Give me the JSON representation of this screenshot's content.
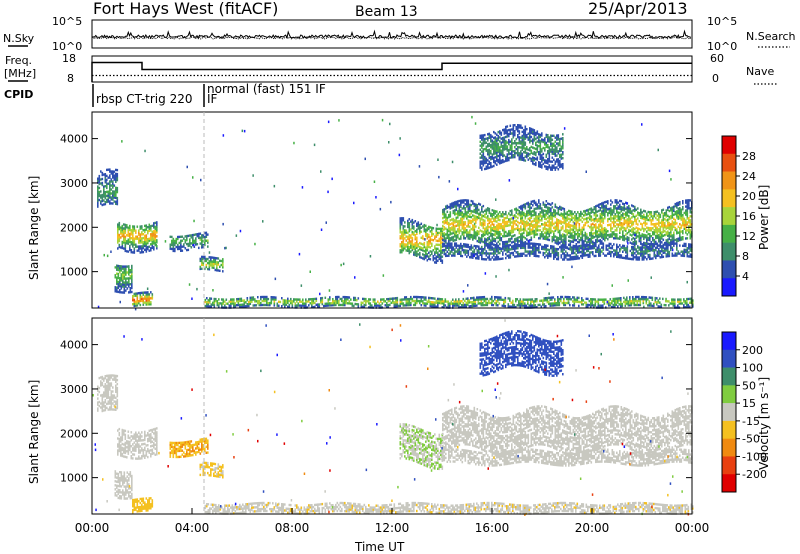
{
  "header": {
    "radar_title": "Fort Hays West (fitACF)",
    "beam": "Beam 13",
    "date": "25/Apr/2013"
  },
  "noise_panel": {
    "left_label": "N.Sky",
    "right_label": "N.Search",
    "left_ticks": [
      "10^5",
      "10^0"
    ],
    "right_ticks": [
      "10^5",
      "10^0"
    ]
  },
  "freq_panel": {
    "left_label_line1": "Freq.",
    "left_label_line2": "[MHz]",
    "right_label": "Nave",
    "left_ticks": [
      "18",
      "8"
    ],
    "right_ticks": [
      "60",
      "0"
    ],
    "frequency_steps": [
      {
        "start": "00:00",
        "end": "02:00",
        "value_mhz": 15.5
      },
      {
        "start": "02:00",
        "end": "14:00",
        "value_mhz": 12.8
      },
      {
        "start": "14:00",
        "end": "24:00",
        "value_mhz": 15.2
      }
    ],
    "nave_level": 15
  },
  "cpid_panel": {
    "label": "CPID",
    "segments": [
      {
        "text": "rbsp CT-trig 220",
        "start": "00:00"
      },
      {
        "text": "IF",
        "start": "04:30"
      },
      {
        "text": "normal (fast) 151 IF",
        "start": "04:30"
      }
    ]
  },
  "power_panel": {
    "ylabel": "Slant Range [km]",
    "yticks": [
      "4000",
      "3000",
      "2000",
      "1000"
    ],
    "colorbar_label": "Power [dB]",
    "colorbar_ticks": [
      "28",
      "24",
      "20",
      "16",
      "12",
      "8",
      "4"
    ],
    "colors": [
      "#1a1aff",
      "#2e4fb0",
      "#3e8e6a",
      "#46b046",
      "#a8d43a",
      "#f4c020",
      "#f09418",
      "#e85010",
      "#e00000"
    ]
  },
  "velocity_panel": {
    "ylabel": "Slant Range [km]",
    "yticks": [
      "4000",
      "3000",
      "2000",
      "1000"
    ],
    "colorbar_label": "Velocity [m s⁻¹]",
    "colorbar_ticks": [
      "200",
      "100",
      "50",
      "15",
      "-15",
      "-50",
      "-100",
      "-200"
    ],
    "colors": [
      "#1a1aff",
      "#3050c0",
      "#3e8e6a",
      "#80cc40",
      "#c8c8c0",
      "#f4c020",
      "#f08a10",
      "#e84010",
      "#e00000"
    ]
  },
  "xaxis": {
    "label": "Time UT",
    "ticks": [
      "00:00",
      "04:00",
      "08:00",
      "12:00",
      "16:00",
      "20:00",
      "00:00"
    ]
  },
  "chart_data": {
    "type": "heatmap",
    "x_range_hours": [
      0,
      24
    ],
    "y_range_km": [
      180,
      4600
    ],
    "power_db_range": [
      0,
      30
    ],
    "velocity_range": [
      -250,
      250
    ],
    "echo_regions": [
      {
        "t0": 0.2,
        "t1": 1.0,
        "r0": 2400,
        "r1": 3200,
        "power": 8,
        "velocity": 0
      },
      {
        "t0": 1.0,
        "t1": 2.6,
        "r0": 1500,
        "r1": 2100,
        "power": 18,
        "velocity": 0
      },
      {
        "t0": 0.9,
        "t1": 1.6,
        "r0": 600,
        "r1": 1200,
        "power": 12,
        "velocity": 0
      },
      {
        "t0": 1.6,
        "t1": 2.4,
        "r0": 200,
        "r1": 500,
        "power": 22,
        "velocity": -50
      },
      {
        "t0": 3.1,
        "t1": 4.6,
        "r0": 1500,
        "r1": 1850,
        "power": 10,
        "velocity": -90
      },
      {
        "t0": 4.3,
        "t1": 5.2,
        "r0": 1000,
        "r1": 1300,
        "power": 14,
        "velocity": -40
      },
      {
        "t0": 4.5,
        "t1": 24.0,
        "r0": 200,
        "r1": 400,
        "power": 14,
        "velocity": -20
      },
      {
        "t0": 12.3,
        "t1": 14.0,
        "r0": 1300,
        "r1": 2100,
        "power": 18,
        "velocity": 30
      },
      {
        "t0": 14.0,
        "t1": 24.0,
        "r0": 1600,
        "r1": 2500,
        "power": 16,
        "velocity": 0
      },
      {
        "t0": 14.0,
        "t1": 24.0,
        "r0": 1300,
        "r1": 1600,
        "power": 6,
        "velocity": 0
      },
      {
        "t0": 15.5,
        "t1": 18.8,
        "r0": 3400,
        "r1": 4200,
        "power": 8,
        "velocity": 180
      }
    ]
  }
}
